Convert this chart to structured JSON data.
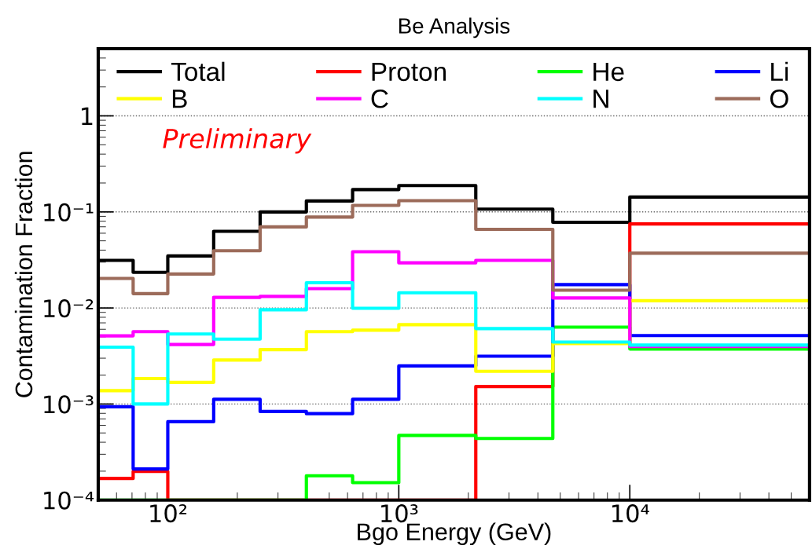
{
  "chart_data": {
    "type": "histogram",
    "title": "Be Analysis",
    "xlabel": "Bgo Energy (GeV)",
    "ylabel": "Contamination Fraction",
    "annotations": [
      "Preliminary"
    ],
    "bins": [
      50,
      70.8,
      100,
      158,
      251,
      398,
      631,
      1000,
      2154,
      4642,
      10000,
      60000
    ],
    "series": [
      {
        "name": "Total",
        "color": "#000000",
        "values": [
          0.0313,
          0.0235,
          0.0348,
          0.0628,
          0.1,
          0.13,
          0.171,
          0.188,
          0.107,
          0.078,
          0.143
        ]
      },
      {
        "name": "Proton",
        "color": "#ff0000",
        "values": [
          0.000168,
          0.000199,
          0.0001,
          0.0001,
          0.0001,
          0.0001,
          0.0001,
          0.0001,
          0.00152,
          0.0043,
          0.075
        ]
      },
      {
        "name": "He",
        "color": "#00ff00",
        "values": [
          0.0001,
          0.0001,
          0.0001,
          0.0001,
          0.0001,
          0.000179,
          0.000152,
          0.000471,
          0.000438,
          0.00632,
          0.00374
        ]
      },
      {
        "name": "Li",
        "color": "#0000ff",
        "values": [
          0.000937,
          0.000211,
          0.000655,
          0.00112,
          0.000836,
          0.000794,
          0.00112,
          0.00249,
          0.00315,
          0.0175,
          0.00516
        ]
      },
      {
        "name": "B",
        "color": "#ffff00",
        "values": [
          0.00138,
          0.00184,
          0.00168,
          0.00287,
          0.00369,
          0.00567,
          0.00588,
          0.0067,
          0.00219,
          0.00426,
          0.0119
        ]
      },
      {
        "name": "C",
        "color": "#ff00ff",
        "values": [
          0.00513,
          0.00567,
          0.00417,
          0.0129,
          0.0132,
          0.0159,
          0.0385,
          0.0295,
          0.0313,
          0.0127,
          0.00397
        ]
      },
      {
        "name": "N",
        "color": "#00ffff",
        "values": [
          0.00391,
          0.001,
          0.00536,
          0.00474,
          0.00958,
          0.0183,
          0.00993,
          0.0144,
          0.0061,
          0.00442,
          0.00411
        ]
      },
      {
        "name": "O",
        "color": "#9c6b5a",
        "values": [
          0.0203,
          0.0141,
          0.0226,
          0.0394,
          0.0698,
          0.0885,
          0.117,
          0.131,
          0.0659,
          0.0153,
          0.0372
        ]
      }
    ],
    "log": "xy",
    "xlim": [
      50,
      60000
    ],
    "ylim": [
      0.0001,
      5
    ],
    "xticks": [
      {
        "value": 100,
        "label": "10²"
      },
      {
        "value": 1000,
        "label": "10³"
      },
      {
        "value": 10000,
        "label": "10⁴"
      }
    ],
    "yticks": [
      {
        "value": 0.0001,
        "label": "10⁻⁴"
      },
      {
        "value": 0.001,
        "label": "10⁻³"
      },
      {
        "value": 0.01,
        "label": "10⁻²"
      },
      {
        "value": 0.1,
        "label": "10⁻¹"
      },
      1
    ],
    "grid": "y",
    "legend": "top"
  }
}
